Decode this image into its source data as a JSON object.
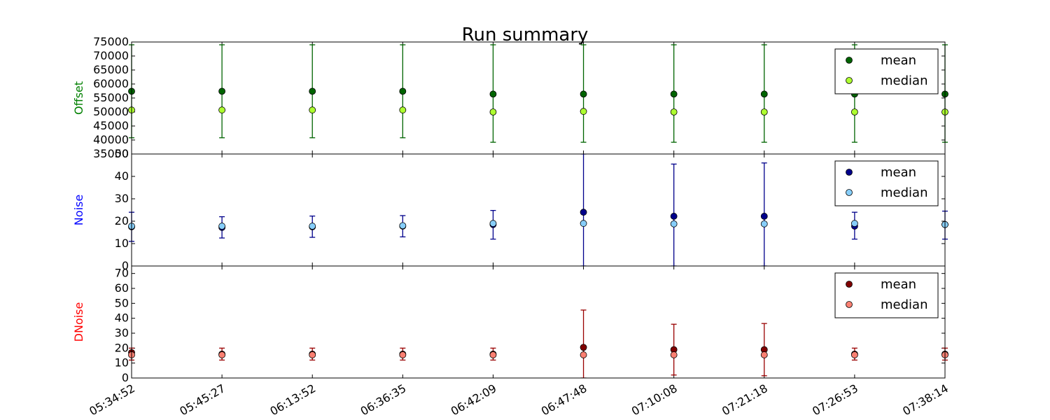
{
  "chart_data": {
    "title": "Run summary",
    "type": "scatter",
    "x_tick_labels": [
      "05:34:52",
      "05:45:27",
      "06:13:52",
      "06:36:35",
      "06:42:09",
      "06:47:48",
      "07:10:08",
      "07:21:18",
      "07:26:53",
      "07:38:14"
    ],
    "panels": [
      {
        "ylabel": "Offset",
        "ylabel_color": "#008000",
        "ylim": [
          35000,
          75000
        ],
        "yticks": [
          35000,
          40000,
          45000,
          50000,
          55000,
          60000,
          65000,
          70000,
          75000
        ],
        "ytick_labels": [
          "35000",
          "40000",
          "45000",
          "50000",
          "55000",
          "60000",
          "65000",
          "70000",
          "75000"
        ],
        "legend": "upper right",
        "series": [
          {
            "name": "mean",
            "color": "#006400",
            "errcolor": "#006400",
            "values": [
              57400,
              57400,
              57400,
              57400,
              56400,
              56400,
              56400,
              56400,
              56400,
              56400
            ],
            "err_low": [
              40800,
              40800,
              40800,
              40800,
              39200,
              39200,
              39200,
              39200,
              39200,
              39200
            ],
            "err_high": [
              74000,
              74000,
              74000,
              74000,
              74000,
              74000,
              74000,
              74000,
              74000,
              74000
            ]
          },
          {
            "name": "median",
            "color": "#adff2f",
            "values": [
              50700,
              50700,
              50700,
              50700,
              50000,
              50200,
              50000,
              50000,
              50000,
              50000
            ]
          }
        ]
      },
      {
        "ylabel": "Noise",
        "ylabel_color": "#0000ff",
        "ylim": [
          0,
          50
        ],
        "yticks": [
          0,
          10,
          20,
          30,
          40,
          50
        ],
        "ytick_labels": [
          "0",
          "10",
          "20",
          "30",
          "40",
          "50"
        ],
        "legend": "upper right",
        "series": [
          {
            "name": "mean",
            "color": "#00008b",
            "errcolor": "#00008b",
            "values": [
              17.5,
              17.2,
              17.5,
              17.8,
              18.5,
              24.0,
              22.2,
              22.2,
              17.8,
              18.5
            ],
            "err_low": [
              11.0,
              12.5,
              12.8,
              13.0,
              12.0,
              0.0,
              0.0,
              0.0,
              12.0,
              12.0
            ],
            "err_high": [
              24.0,
              22.0,
              22.3,
              22.5,
              24.8,
              50.0,
              45.5,
              46.0,
              24.0,
              24.5
            ]
          },
          {
            "name": "median",
            "color": "#87cefa",
            "values": [
              17.8,
              17.8,
              17.8,
              18.0,
              19.0,
              19.0,
              18.8,
              18.8,
              19.0,
              18.5
            ]
          }
        ]
      },
      {
        "ylabel": "DNoise",
        "ylabel_color": "#ff0000",
        "ylim": [
          0,
          75
        ],
        "yticks": [
          0,
          10,
          20,
          30,
          40,
          50,
          60,
          70
        ],
        "ytick_labels": [
          "0",
          "10",
          "20",
          "30",
          "40",
          "50",
          "60",
          "70"
        ],
        "legend": "upper right",
        "series": [
          {
            "name": "mean",
            "color": "#800000",
            "errcolor": "#990000",
            "values": [
              17.0,
              16.0,
              16.0,
              16.0,
              16.0,
              20.5,
              19.0,
              19.0,
              16.0,
              16.0
            ],
            "err_low": [
              12.0,
              12.0,
              12.0,
              12.0,
              12.0,
              0.0,
              2.0,
              1.5,
              12.0,
              12.0
            ],
            "err_high": [
              20.0,
              20.0,
              20.0,
              20.0,
              20.0,
              45.5,
              36.0,
              36.5,
              20.0,
              20.0
            ]
          },
          {
            "name": "median",
            "color": "#fa8072",
            "values": [
              15.5,
              15.5,
              15.5,
              15.5,
              15.5,
              15.5,
              15.5,
              15.5,
              15.5,
              15.5
            ]
          }
        ]
      }
    ]
  }
}
